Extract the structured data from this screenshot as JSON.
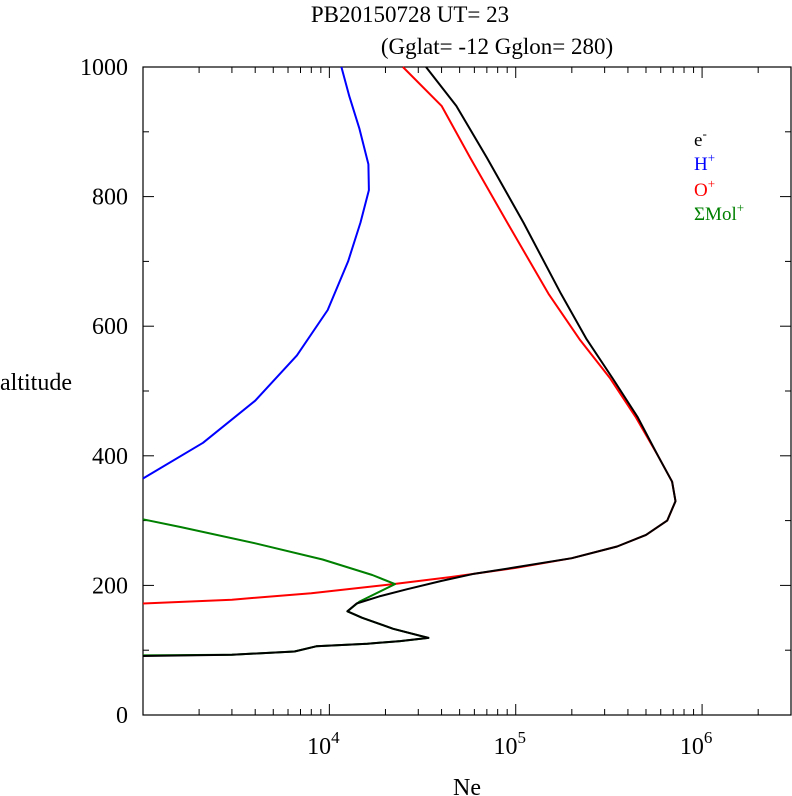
{
  "chart_data": {
    "type": "line",
    "title_line1": "PB20150728   UT=  23",
    "title_line2": "(Gglat= -12   Gglon=  280)",
    "xlabel": "Ne",
    "ylabel": "altitude",
    "x_scale": "log",
    "xlim": [
      1000,
      3000000
    ],
    "ylim": [
      0,
      1000
    ],
    "y_ticks": [
      "0",
      "200",
      "400",
      "600",
      "800",
      "1000"
    ],
    "x_ticks": [
      {
        "base": "10",
        "exp": "4",
        "value": 10000
      },
      {
        "base": "10",
        "exp": "5",
        "value": 100000
      },
      {
        "base": "10",
        "exp": "6",
        "value": 1000000
      }
    ],
    "legend": [
      {
        "base": "e",
        "sup": "-",
        "color": "#000000"
      },
      {
        "base": "H",
        "sup": "+",
        "color": "#0000ff"
      },
      {
        "base": "O",
        "sup": "+",
        "color": "#ff0000"
      },
      {
        "base": "ΣMol",
        "sup": "+",
        "color": "#008000"
      }
    ],
    "series": [
      {
        "name": "H+",
        "color": "#0000ff",
        "points": [
          [
            1000,
            365
          ],
          [
            2100,
            420
          ],
          [
            4000,
            485
          ],
          [
            6700,
            555
          ],
          [
            9800,
            625
          ],
          [
            12600,
            700
          ],
          [
            14700,
            760
          ],
          [
            16300,
            810
          ],
          [
            16200,
            850
          ],
          [
            14500,
            905
          ],
          [
            12800,
            955
          ],
          [
            11600,
            1000
          ]
        ]
      },
      {
        "name": "O+",
        "color": "#ff0000",
        "points": [
          [
            1000,
            172
          ],
          [
            3000,
            178
          ],
          [
            8000,
            188
          ],
          [
            22000,
            202
          ],
          [
            45000,
            213
          ],
          [
            100000,
            227
          ],
          [
            200000,
            242
          ],
          [
            350000,
            260
          ],
          [
            500000,
            278
          ],
          [
            650000,
            300
          ],
          [
            720000,
            330
          ],
          [
            690000,
            360
          ],
          [
            580000,
            400
          ],
          [
            440000,
            460
          ],
          [
            320000,
            520
          ],
          [
            220000,
            580
          ],
          [
            150000,
            650
          ],
          [
            90000,
            760
          ],
          [
            57000,
            860
          ],
          [
            40000,
            940
          ],
          [
            24800,
            1000
          ]
        ]
      },
      {
        "name": "Mol+",
        "color": "#008000",
        "points": [
          [
            1000,
            92
          ],
          [
            3000,
            93
          ],
          [
            6500,
            98
          ],
          [
            8500,
            106
          ],
          [
            16000,
            110
          ],
          [
            24000,
            114
          ],
          [
            34000,
            119
          ],
          [
            22000,
            133
          ],
          [
            15000,
            150
          ],
          [
            12500,
            160
          ],
          [
            14500,
            175
          ],
          [
            22500,
            202
          ],
          [
            17000,
            216
          ],
          [
            9200,
            240
          ],
          [
            4000,
            265
          ],
          [
            1600,
            290
          ],
          [
            1000,
            302
          ]
        ]
      },
      {
        "name": "e-",
        "color": "#000000",
        "points": [
          [
            1000,
            91
          ],
          [
            3000,
            93
          ],
          [
            6500,
            98
          ],
          [
            8500,
            106
          ],
          [
            16000,
            110
          ],
          [
            24000,
            114
          ],
          [
            34000,
            119
          ],
          [
            22000,
            133
          ],
          [
            15000,
            150
          ],
          [
            12500,
            160
          ],
          [
            14000,
            172
          ],
          [
            18500,
            183
          ],
          [
            26000,
            194
          ],
          [
            40000,
            207
          ],
          [
            60000,
            218
          ],
          [
            100000,
            228
          ],
          [
            200000,
            242
          ],
          [
            350000,
            260
          ],
          [
            500000,
            278
          ],
          [
            650000,
            300
          ],
          [
            720000,
            330
          ],
          [
            690000,
            360
          ],
          [
            580000,
            400
          ],
          [
            450000,
            460
          ],
          [
            330000,
            520
          ],
          [
            240000,
            580
          ],
          [
            175000,
            650
          ],
          [
            110000,
            760
          ],
          [
            70000,
            860
          ],
          [
            48000,
            940
          ],
          [
            33000,
            1000
          ]
        ]
      }
    ]
  }
}
